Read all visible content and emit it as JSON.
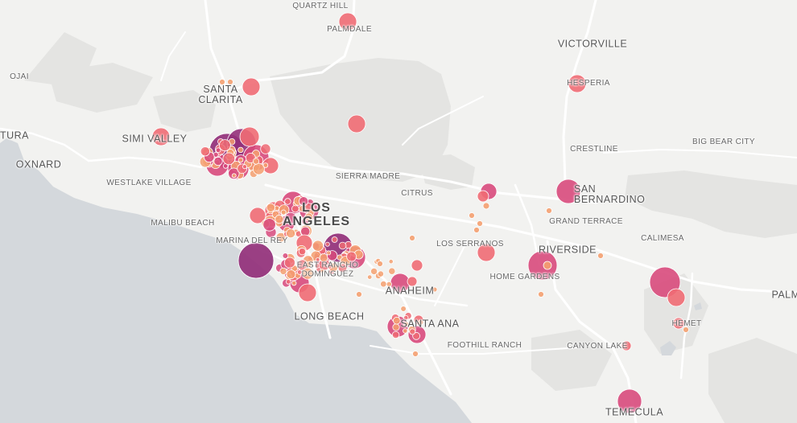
{
  "map": {
    "labels": {
      "quartz_hill": "QUARTZ HILL",
      "palmdale": "PALMDALE",
      "victorville": "VICTORVILLE",
      "ojai": "OJAI",
      "santa_clarita": "SANTA CLARITA",
      "hesperia": "HESPERIA",
      "ventura": "TURA",
      "simi_valley": "SIMI VALLEY",
      "crestline": "CRESTLINE",
      "big_bear_city": "BIG BEAR CITY",
      "oxnard": "OXNARD",
      "westlake_village": "WESTLAKE VILLAGE",
      "sierra_madre": "SIERRA MADRE",
      "citrus": "CITRUS",
      "san_bernardino": "SAN BERNARDINO",
      "los_angeles": "LOS ANGELES",
      "malibu_beach": "MALIBU BEACH",
      "grand_terrace": "GRAND TERRACE",
      "marina_del_rey": "MARINA DEL REY",
      "los_serranos": "LOS SERRANOS",
      "riverside": "RIVERSIDE",
      "calimesa": "CALIMESA",
      "east_rancho_dominguez": "EAST RANCHO DOMINGUEZ",
      "home_gardens": "HOME GARDENS",
      "palm": "PALM",
      "anaheim": "ANAHEIM",
      "long_beach": "LONG BEACH",
      "santa_ana": "SANTA ANA",
      "hemet": "HEMET",
      "foothill_ranch": "FOOTHILL RANCH",
      "canyon_lake": "CANYON LAKE",
      "temecula": "TEMECULA"
    },
    "colors": {
      "land": "#f2f2f0",
      "water": "#d4d8dc",
      "terrain": "#e4e4e2",
      "roads": "#ffffff",
      "small": "#f4a070",
      "medium": "#ef6b74",
      "large": "#d84a7c",
      "largest": "#93307a"
    }
  }
}
